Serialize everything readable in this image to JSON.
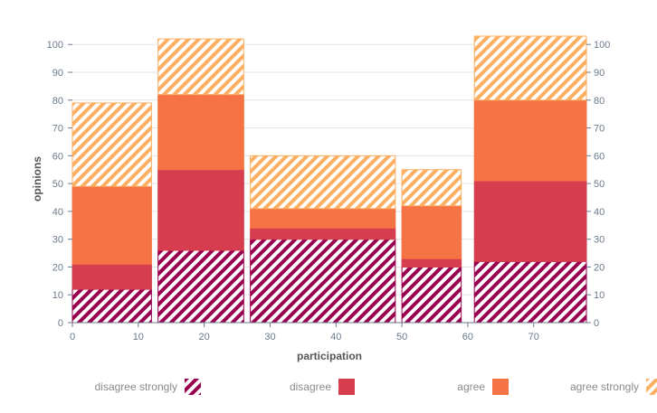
{
  "chart_data": {
    "type": "bar",
    "subtype": "stacked-variable-width",
    "xlabel": "participation",
    "ylabel": "opinions",
    "xlim": [
      0,
      78
    ],
    "ylim": [
      0,
      103
    ],
    "x_ticks": [
      0,
      10,
      20,
      30,
      40,
      50,
      60,
      70
    ],
    "y_ticks": [
      0,
      10,
      20,
      30,
      40,
      50,
      60,
      70,
      80,
      90,
      100
    ],
    "y_axis_mirrored_right": true,
    "legend_position": "bottom",
    "bars": [
      {
        "x_start": 0,
        "x_end": 12,
        "values": [
          12,
          9,
          28,
          30
        ]
      },
      {
        "x_start": 13,
        "x_end": 26,
        "values": [
          26,
          29,
          27,
          20
        ]
      },
      {
        "x_start": 27,
        "x_end": 49,
        "values": [
          30,
          4,
          7,
          19
        ]
      },
      {
        "x_start": 50,
        "x_end": 59,
        "values": [
          20,
          3,
          19,
          13
        ]
      },
      {
        "x_start": 61,
        "x_end": 78,
        "values": [
          22,
          29,
          29,
          23
        ]
      }
    ],
    "series": [
      {
        "name": "disagree strongly",
        "color": "#99004f",
        "pattern": "striped"
      },
      {
        "name": "disagree",
        "color": "#d63e4f",
        "pattern": "solid"
      },
      {
        "name": "agree",
        "color": "#f57344",
        "pattern": "solid"
      },
      {
        "name": "agree strongly",
        "color": "#fcae61",
        "pattern": "striped"
      }
    ]
  }
}
